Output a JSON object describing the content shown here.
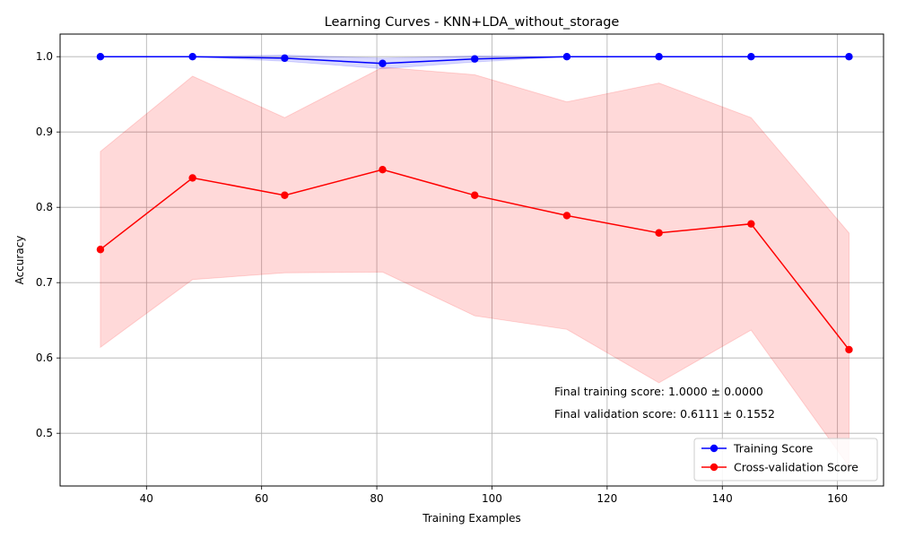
{
  "chart_data": {
    "type": "line",
    "title": "Learning Curves - KNN+LDA_without_storage",
    "xlabel": "Training Examples",
    "ylabel": "Accuracy",
    "xlim": [
      25,
      168
    ],
    "ylim": [
      0.43,
      1.03
    ],
    "xticks": [
      40,
      60,
      80,
      100,
      120,
      140,
      160
    ],
    "yticks": [
      0.5,
      0.6,
      0.7,
      0.8,
      0.9,
      1.0
    ],
    "grid": true,
    "legend_position": "bottom-right",
    "x": [
      32,
      48,
      64,
      81,
      97,
      113,
      129,
      145,
      162
    ],
    "series": [
      {
        "name": "Training Score",
        "color": "#0000ff",
        "band_color": "#0000ff",
        "values": [
          1.0,
          1.0,
          0.998,
          0.991,
          0.997,
          1.0,
          1.0,
          1.0,
          1.0
        ],
        "std": [
          0.0,
          0.0,
          0.004,
          0.007,
          0.004,
          0.0,
          0.0,
          0.0,
          0.0
        ]
      },
      {
        "name": "Cross-validation Score",
        "color": "#ff0000",
        "band_color": "#ff0000",
        "values": [
          0.744,
          0.839,
          0.816,
          0.85,
          0.816,
          0.789,
          0.766,
          0.778,
          0.611
        ],
        "std": [
          0.13,
          0.135,
          0.103,
          0.136,
          0.16,
          0.151,
          0.199,
          0.141,
          0.155
        ]
      }
    ],
    "annotations": [
      "Final training score: 1.0000 ± 0.0000",
      "Final validation score: 0.6111 ± 0.1552"
    ]
  }
}
